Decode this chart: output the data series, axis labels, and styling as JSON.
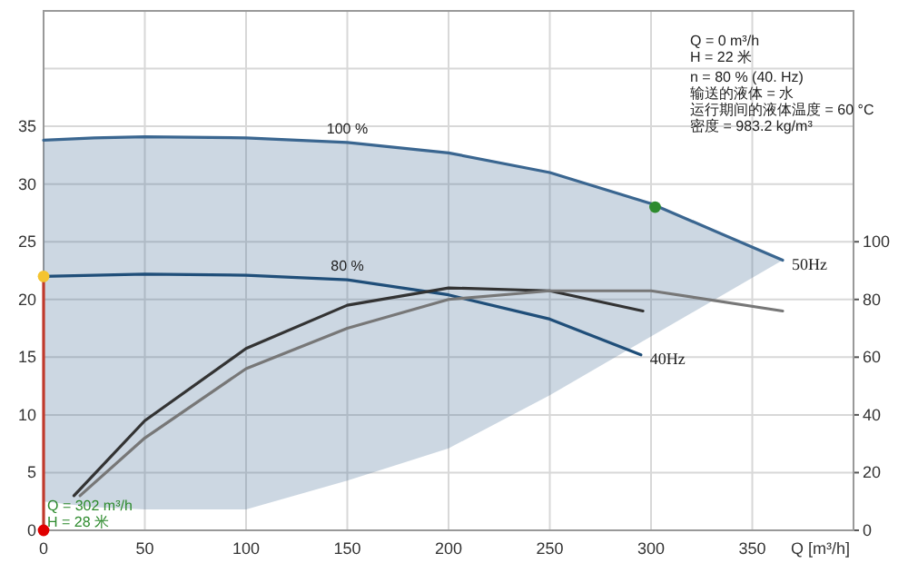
{
  "chart_data": {
    "type": "line",
    "xlabel": "Q [m³/h]",
    "xlim": [
      0,
      400
    ],
    "xticks": [
      0,
      50,
      100,
      150,
      200,
      250,
      300,
      350
    ],
    "ylim": [
      0,
      45
    ],
    "yticks": [
      0,
      5,
      10,
      15,
      20,
      25,
      30,
      35,
      {
        "value": 40,
        "label": null
      }
    ],
    "y2lim": [
      0,
      180
    ],
    "y2ticks": [
      0,
      20,
      40,
      60,
      80,
      100
    ],
    "grid": true,
    "legend": false,
    "series": [
      {
        "name": "100 %",
        "color": "#3a6690",
        "x": [
          0,
          25,
          50,
          100,
          150,
          200,
          250,
          300,
          365
        ],
        "values": [
          33.8,
          34,
          34.1,
          34,
          33.6,
          32.7,
          31,
          28.3,
          23.4
        ],
        "upper": [
          33.8,
          34,
          34.1,
          34,
          33.6,
          32.7,
          31,
          28.3,
          23.4
        ],
        "lower": [
          2.5,
          2.0,
          1.8,
          1.8,
          4.3,
          7.1,
          11.7,
          16.8,
          23.4
        ]
      },
      {
        "name": "80 %",
        "color": "#1f4e79",
        "x": [
          0,
          50,
          100,
          150,
          200,
          250,
          295
        ],
        "values": [
          22,
          22.2,
          22.1,
          21.7,
          20.4,
          18.3,
          15.2
        ]
      },
      {
        "axis": "y2",
        "color": "#333333",
        "x": [
          15,
          50,
          100,
          150,
          200,
          250,
          296
        ],
        "values": [
          12,
          38,
          63,
          78,
          84,
          83,
          76
        ]
      },
      {
        "axis": "y2",
        "color": "#777777",
        "x": [
          18,
          50,
          100,
          150,
          200,
          250,
          300,
          365
        ],
        "values": [
          12,
          32,
          56,
          70,
          80,
          83,
          83,
          76
        ]
      },
      {
        "color": "#c0392b",
        "x": [
          0,
          0
        ],
        "values": [
          0,
          22
        ]
      },
      {
        "type": "scatter",
        "colors": [
          "#2e8b2e",
          "#f4c430",
          "#e00000"
        ],
        "x": [
          302,
          0,
          0
        ],
        "values": [
          28,
          22,
          0
        ]
      }
    ],
    "annotations": [
      {
        "text": "50Hz",
        "x": 365,
        "y": 23.4
      },
      {
        "text": "40Hz",
        "x": 295,
        "y": 15.2
      },
      "Q = 302 m³/h",
      "H = 28 米",
      "Q = 0    m³/h",
      "H = 22 米",
      "n = 80 % (40.  Hz)",
      "输送的液体 = 水",
      "运行期间的液体温度 = 60 °C",
      "密度 = 983.2 kg/m³"
    ]
  }
}
